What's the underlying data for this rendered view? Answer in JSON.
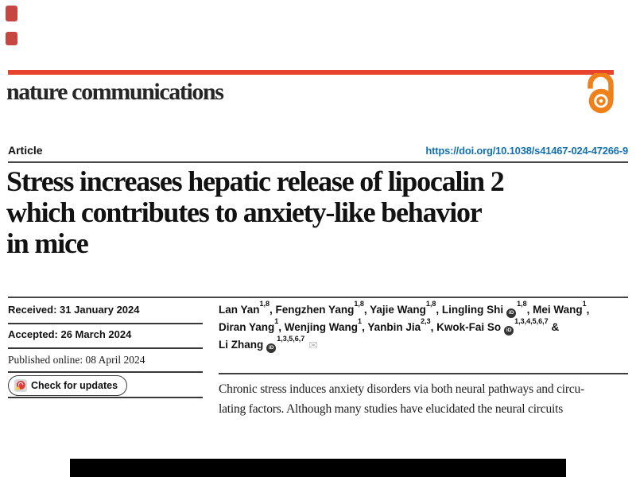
{
  "masthead": {
    "journal_name": "nature communications",
    "accent_bar_color": "#e8432d",
    "open_access_color": "#f08019"
  },
  "article_header": {
    "article_type": "Article",
    "doi_link": "https://doi.org/10.1038/s41467-024-47266-9",
    "doi_color": "#1371b1"
  },
  "title": {
    "lines": [
      "Stress increases hepatic release of lipocalin 2",
      "which contributes to anxiety-like behavior",
      "in mice"
    ]
  },
  "sidebar": {
    "received": "Received: 31 January 2024",
    "accepted": "Accepted: 26 March 2024",
    "published_online": "Published online: 08 April 2024",
    "check_for_updates": "Check for updates"
  },
  "authors": {
    "lines": [
      [
        {
          "t": "name",
          "v": "Lan Yan"
        },
        {
          "t": "sup",
          "v": "1,8"
        },
        {
          "t": "name",
          "v": ", Fengzhen Yang"
        },
        {
          "t": "sup",
          "v": "1,8"
        },
        {
          "t": "name",
          "v": ", Yajie Wang"
        },
        {
          "t": "sup",
          "v": "1,8"
        },
        {
          "t": "name",
          "v": ", Lingling Shi"
        },
        {
          "t": "orcid"
        },
        {
          "t": "sup",
          "v": "1,8"
        },
        {
          "t": "name",
          "v": ", Mei Wang"
        },
        {
          "t": "sup",
          "v": "1"
        },
        {
          "t": "name",
          "v": ","
        }
      ],
      [
        {
          "t": "name",
          "v": "Diran Yang"
        },
        {
          "t": "sup",
          "v": "1"
        },
        {
          "t": "name",
          "v": ", Wenjing Wang"
        },
        {
          "t": "sup",
          "v": "1"
        },
        {
          "t": "name",
          "v": ", Yanbin Jia"
        },
        {
          "t": "sup",
          "v": "2,3"
        },
        {
          "t": "name",
          "v": ", Kwok-Fai So"
        },
        {
          "t": "orcid"
        },
        {
          "t": "sup",
          "v": "1,3,4,5,6,7"
        },
        {
          "t": "name",
          "v": " &"
        }
      ],
      [
        {
          "t": "name",
          "v": "Li Zhang"
        },
        {
          "t": "orcid"
        },
        {
          "t": "sup",
          "v": "1,3,5,6,7"
        },
        {
          "t": "mail"
        }
      ]
    ]
  },
  "icons": {
    "orcid": "iD",
    "mail": "✉"
  },
  "abstract": {
    "lines": [
      "Chronic stress induces anxiety disorders via both neural pathways and circu-",
      "lating factors. Although many studies have elucidated the neural circuits"
    ]
  }
}
